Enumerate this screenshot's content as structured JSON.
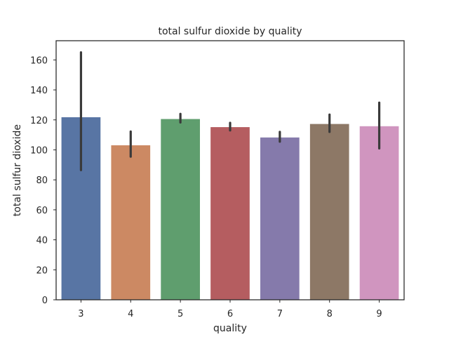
{
  "chart_data": {
    "type": "bar",
    "title": "total sulfur dioxide by quality",
    "xlabel": "quality",
    "ylabel": "total sulfur dioxide",
    "categories": [
      "3",
      "4",
      "5",
      "6",
      "7",
      "8",
      "9"
    ],
    "values": [
      122.0,
      103.3,
      120.8,
      115.4,
      108.5,
      117.5,
      116.0
    ],
    "error_bars": [
      [
        86.5,
        165.0
      ],
      [
        95.5,
        112.2
      ],
      [
        118.3,
        124.0
      ],
      [
        113.0,
        118.0
      ],
      [
        105.5,
        112.0
      ],
      [
        112.0,
        123.5
      ],
      [
        101.0,
        131.5
      ]
    ],
    "colors": [
      "#5875a4",
      "#cc8963",
      "#5f9e6e",
      "#b55d60",
      "#857aab",
      "#8d7866",
      "#d095bf"
    ],
    "error_color": "#3a3a3a",
    "ylim": [
      0,
      172.8
    ],
    "yticks": [
      0,
      20,
      40,
      60,
      80,
      100,
      120,
      140,
      160
    ],
    "grid": false,
    "legend": "none"
  }
}
